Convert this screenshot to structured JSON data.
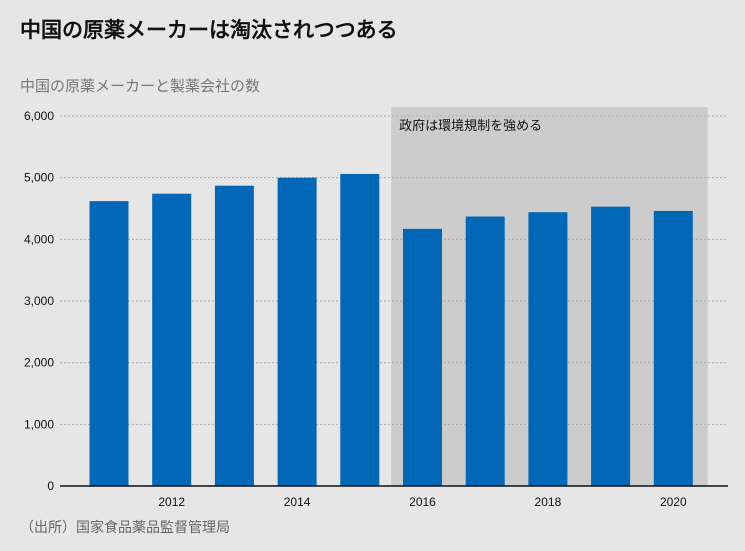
{
  "chart_data": {
    "type": "bar",
    "title": "中国の原薬メーカーは淘汰されつつある",
    "subtitle": "中国の原薬メーカーと製薬会社の数",
    "source": "（出所）国家食品薬品監督管理局",
    "categories": [
      2011,
      2012,
      2013,
      2014,
      2015,
      2016,
      2017,
      2018,
      2019,
      2020
    ],
    "values": [
      4620,
      4740,
      4870,
      5000,
      5060,
      4170,
      4370,
      4440,
      4530,
      4460
    ],
    "ylim": [
      0,
      6000
    ],
    "yticks": [
      0,
      1000,
      2000,
      3000,
      4000,
      5000,
      6000
    ],
    "ytick_labels": [
      "0",
      "1,000",
      "2,000",
      "3,000",
      "4,000",
      "5,000",
      "6,000"
    ],
    "xticks": [
      2012,
      2014,
      2016,
      2018,
      2020
    ],
    "xtick_labels": [
      "2012",
      "2014",
      "2016",
      "2018",
      "2020"
    ],
    "grid": "horizontal dotted",
    "highlight": {
      "from": 2015.5,
      "to": 2020.55,
      "label": "政府は環境規制を強める"
    },
    "xlabel": "",
    "ylabel": ""
  },
  "colors": {
    "bar": "#0068b7",
    "highlight": "#cccccc",
    "background": "#e6e6e6"
  }
}
